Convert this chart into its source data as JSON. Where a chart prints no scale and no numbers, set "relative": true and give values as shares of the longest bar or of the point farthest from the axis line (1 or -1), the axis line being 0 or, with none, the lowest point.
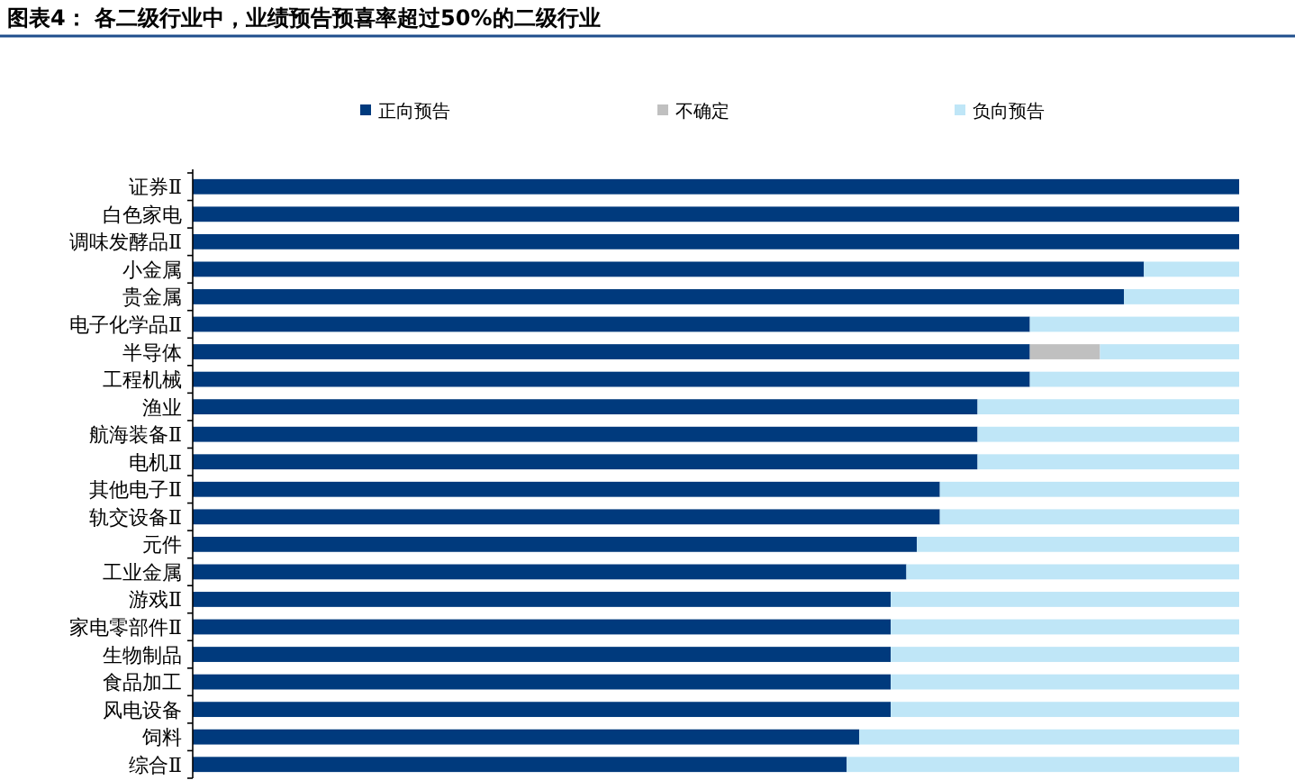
{
  "chart_data": {
    "type": "bar",
    "orientation": "horizontal",
    "stacked": true,
    "relative": true,
    "legend": "top",
    "title": "图表4：  各二级行业中，业绩预告预喜率超过50%的二级行业",
    "categories": [
      "证券Ⅱ",
      "白色家电",
      "调味发酵品Ⅱ",
      "小金属",
      "贵金属",
      "电子化学品Ⅱ",
      "半导体",
      "工程机械",
      "渔业",
      "航海装备Ⅱ",
      "电机Ⅱ",
      "其他电子Ⅱ",
      "轨交设备Ⅱ",
      "元件",
      "工业金属",
      "游戏Ⅱ",
      "家电零部件Ⅱ",
      "生物制品",
      "食品加工",
      "风电设备",
      "饲料",
      "综合Ⅱ"
    ],
    "series": [
      {
        "name": "正向预告",
        "color": "#003a7d",
        "values": [
          1,
          1,
          1,
          0.909,
          0.89,
          0.8,
          0.8,
          0.8,
          0.75,
          0.75,
          0.75,
          0.714,
          0.714,
          0.692,
          0.682,
          0.667,
          0.667,
          0.667,
          0.667,
          0.667,
          0.637,
          0.625
        ]
      },
      {
        "name": "不确定",
        "color": "#c0c0c0",
        "values": [
          0,
          0,
          0,
          0,
          0,
          0,
          0.067,
          0,
          0,
          0,
          0,
          0,
          0,
          0,
          0,
          0,
          0,
          0,
          0,
          0,
          0,
          0
        ]
      },
      {
        "name": "负向预告",
        "color": "#bfe6f7",
        "values": [
          0,
          0,
          0,
          0.091,
          0.11,
          0.2,
          0.133,
          0.2,
          0.25,
          0.25,
          0.25,
          0.286,
          0.286,
          0.308,
          0.318,
          0.333,
          0.333,
          0.333,
          0.333,
          0.333,
          0.363,
          0.375
        ]
      }
    ]
  }
}
